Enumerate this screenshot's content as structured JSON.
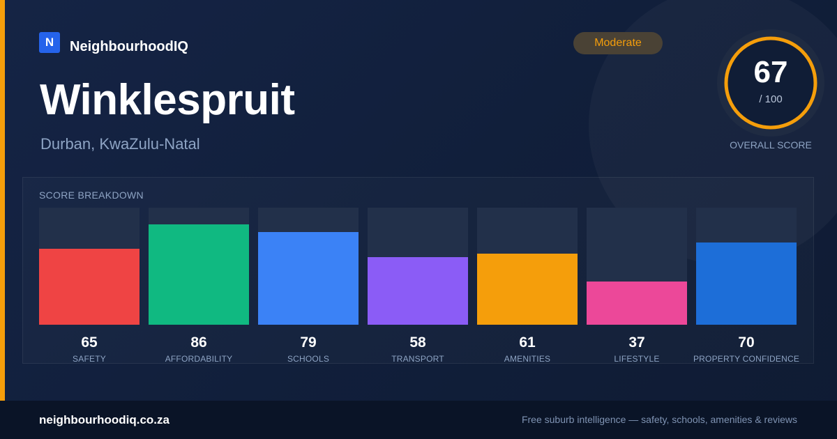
{
  "brand": {
    "mark": "N",
    "name": "NeighbourhoodIQ"
  },
  "suburb": {
    "name": "Winklespruit",
    "location": "Durban, KwaZulu-Natal"
  },
  "badge": {
    "label": "Moderate",
    "color": "#f59e0b"
  },
  "overall": {
    "value": "67",
    "max_label": "/ 100",
    "label": "OVERALL SCORE",
    "score": 67,
    "max": 100,
    "ring_color": "#f59e0b"
  },
  "breakdown": {
    "title": "SCORE BREAKDOWN"
  },
  "chart_data": {
    "type": "bar",
    "ylim": [
      0,
      100
    ],
    "categories": [
      "SAFETY",
      "AFFORDABILITY",
      "SCHOOLS",
      "TRANSPORT",
      "AMENITIES",
      "LIFESTYLE",
      "PROPERTY CONFIDENCE"
    ],
    "values": [
      65,
      86,
      79,
      58,
      61,
      37,
      70
    ],
    "colors": [
      "#ef4444",
      "#10b981",
      "#3b82f6",
      "#8b5cf6",
      "#f59e0b",
      "#ec4899",
      "#1d6ed8"
    ]
  },
  "footer": {
    "site": "neighbourhoodiq.co.za",
    "tagline": "Free suburb intelligence — safety, schools, amenities & reviews"
  }
}
